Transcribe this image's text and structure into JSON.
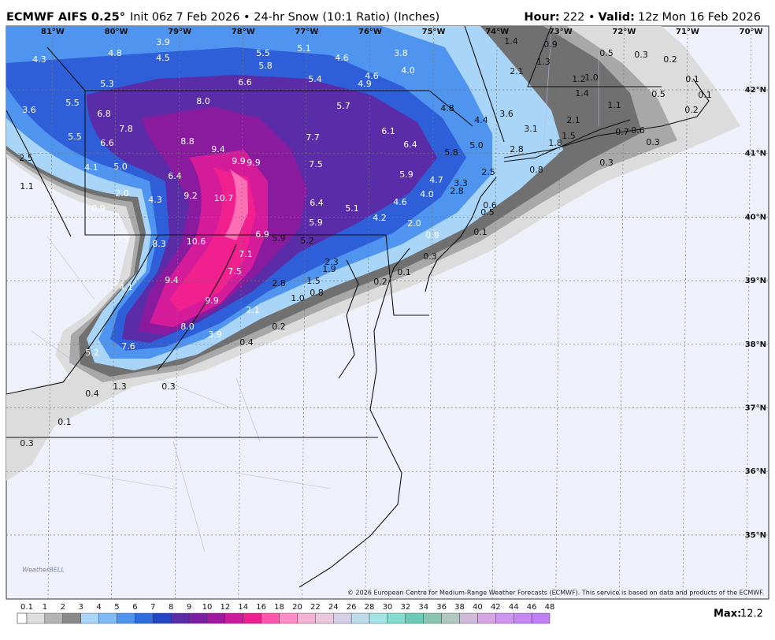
{
  "header": {
    "model": "ECMWF AIFS 0.25°",
    "subtitle": "Init 06z 7 Feb 2026 • 24-hr Snow (10:1 Ratio) (Inches)",
    "hour_label": "Hour:",
    "hour": "222 •",
    "valid_label": "Valid:",
    "valid": "12z Mon 16 Feb 2026"
  },
  "map": {
    "longitudes": [
      "81°W",
      "80°W",
      "79°W",
      "78°W",
      "77°W",
      "76°W",
      "75°W",
      "74°W",
      "73°W",
      "72°W",
      "71°W",
      "70°W"
    ],
    "latitudes": [
      "42°N",
      "41°N",
      "40°N",
      "39°N",
      "38°N",
      "37°N",
      "36°N",
      "35°N"
    ],
    "snow_labels": [
      "4.3",
      "4.8",
      "3.9",
      "4.5",
      "5.5",
      "5.8",
      "5.1",
      "4.6",
      "3.8",
      "4.0",
      "6.6",
      "5.4",
      "4.6",
      "4.9",
      "5.3",
      "1.4",
      "0.9",
      "0.5",
      "0.3",
      "0.2",
      "1.3",
      "2.1",
      "1.2",
      "1.0",
      "0.1",
      "3.6",
      "5.5",
      "6.8",
      "8.0",
      "5.7",
      "4.8",
      "3.6",
      "4.4",
      "1.4",
      "0.5",
      "0.1",
      "1.1",
      "0.2",
      "7.8",
      "5.5",
      "6.6",
      "8.8",
      "9.4",
      "7.7",
      "6.1",
      "6.4",
      "5.0",
      "3.1",
      "2.1",
      "1.5",
      "0.7",
      "0.6",
      "0.3",
      "2.5",
      "4.1",
      "5.0",
      "9.9",
      "9.9",
      "7.5",
      "5.8",
      "2.8",
      "1.8",
      "0.3",
      "0.8",
      "5.9",
      "2.5",
      "6.4",
      "1.1",
      "2.0",
      "4.7",
      "4.0",
      "3.3",
      "2.8",
      "4.3",
      "9.2",
      "10.7",
      "6.4",
      "0.9",
      "5.1",
      "4.6",
      "4.2",
      "0.6",
      "0.5",
      "5.9",
      "2.0",
      "0.1",
      "0.5",
      "8.3",
      "10.6",
      "6.9",
      "5.9",
      "5.2",
      "0.8",
      "7.1",
      "0.3",
      "2.3",
      "1.9",
      "7.5",
      "2.8",
      "0.1",
      "0.2",
      "9.4",
      "1.5",
      "0.8",
      "1.0",
      "4.1",
      "9.9",
      "2.1",
      "8.0",
      "0.2",
      "3.9",
      "0.4",
      "5.2",
      "7.6",
      "0.3",
      "0.4",
      "1.3",
      "0.1",
      "0.3"
    ],
    "logo": "WeatherBELL",
    "copyright": "© 2026 European Centre for Medium-Range Weather Forecasts (ECMWF). This service is based on data and products of the ECMWF."
  },
  "colorbar": {
    "levels": [
      "0.1",
      "1",
      "2",
      "3",
      "4",
      "5",
      "6",
      "7",
      "8",
      "9",
      "10",
      "12",
      "14",
      "16",
      "18",
      "20",
      "22",
      "24",
      "26",
      "28",
      "30",
      "32",
      "34",
      "36",
      "38",
      "40",
      "42",
      "44",
      "46",
      "48"
    ],
    "colors": [
      "#dedede",
      "#b4b4b4",
      "#8a8a8a",
      "#a9d6f8",
      "#7fbaf4",
      "#4f94ee",
      "#2f6ce0",
      "#2347c4",
      "#5a2ca8",
      "#7a1fa2",
      "#a01a9e",
      "#cc1c9c",
      "#ee2090",
      "#ff55aa",
      "#ff8cc6",
      "#f4b2d4",
      "#e9c8de",
      "#d5cfe8",
      "#bfdcec",
      "#a3e4e6",
      "#84dccf",
      "#6ccab8",
      "#8bc5b2",
      "#b0c8c0",
      "#cdbad8",
      "#d6a6e4",
      "#cf95ee",
      "#c689f2",
      "#c07ff4"
    ],
    "max_label": "Max:",
    "max_value": "12.2"
  }
}
